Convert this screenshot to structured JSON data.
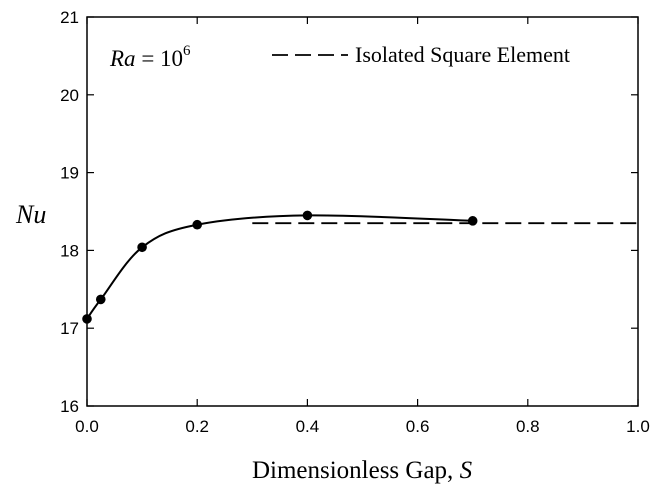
{
  "chart_data": {
    "type": "line",
    "xlabel": "Dimensionless Gap, ",
    "xlabel_var": "S",
    "ylabel": "Nu",
    "xlim": [
      0.0,
      1.0
    ],
    "ylim": [
      16,
      21
    ],
    "x_ticks": [
      "0.0",
      "0.2",
      "0.4",
      "0.6",
      "0.8",
      "1.0"
    ],
    "y_ticks": [
      "16",
      "17",
      "18",
      "19",
      "20",
      "21"
    ],
    "annotation": {
      "var": "Ra",
      "eq": " = 10",
      "exp": "6"
    },
    "legend": {
      "position": "top-right"
    },
    "series": [
      {
        "style": "solid-with-markers",
        "x": [
          0.0,
          0.025,
          0.1,
          0.2,
          0.4,
          0.7
        ],
        "y": [
          17.12,
          17.37,
          18.04,
          18.33,
          18.45,
          18.38
        ]
      },
      {
        "name": "Isolated Square Element",
        "style": "dashed",
        "x": [
          0.3,
          1.0
        ],
        "y": [
          18.35,
          18.35
        ]
      }
    ],
    "grid": false
  }
}
